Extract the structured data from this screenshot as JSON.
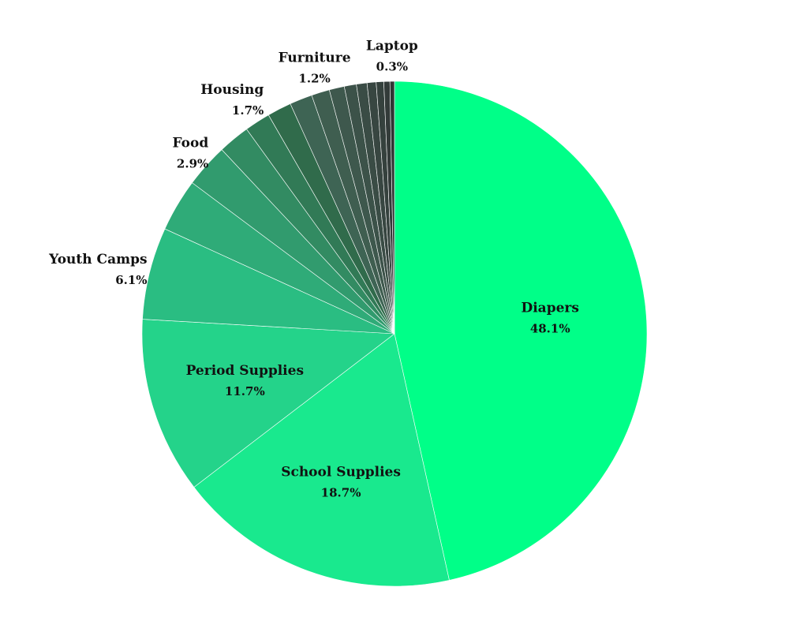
{
  "chart_data": {
    "type": "pie",
    "title": "",
    "start_angle_deg": 0,
    "direction": "clockwise",
    "slices": [
      {
        "label": "Diapers",
        "value": 48.1,
        "pct_label": "48.1%",
        "color": "#00FF88"
      },
      {
        "label": "School Supplies",
        "value": 18.7,
        "pct_label": "18.7%",
        "color": "#19E98E"
      },
      {
        "label": "Period Supplies",
        "value": 11.7,
        "pct_label": "11.7%",
        "color": "#24D38A"
      },
      {
        "label": "Youth Camps",
        "value": 6.1,
        "pct_label": "6.1%",
        "color": "#2ABD82"
      },
      {
        "label": "",
        "value": 3.5,
        "pct_label": "",
        "color": "#2FAB78"
      },
      {
        "label": "Food",
        "value": 2.9,
        "pct_label": "2.9%",
        "color": "#319B6E"
      },
      {
        "label": "",
        "value": 2.1,
        "pct_label": "",
        "color": "#328B62"
      },
      {
        "label": "Housing",
        "value": 1.7,
        "pct_label": "1.7%",
        "color": "#317A56"
      },
      {
        "label": "",
        "value": 1.6,
        "pct_label": "",
        "color": "#306B4B"
      },
      {
        "label": "",
        "value": 1.5,
        "pct_label": "",
        "color": "#3E6454"
      },
      {
        "label": "Furniture",
        "value": 1.2,
        "pct_label": "1.2%",
        "color": "#3F5E50"
      },
      {
        "label": "",
        "value": 1.0,
        "pct_label": "",
        "color": "#3E584D"
      },
      {
        "label": "",
        "value": 0.8,
        "pct_label": "",
        "color": "#3C5249"
      },
      {
        "label": "",
        "value": 0.7,
        "pct_label": "",
        "color": "#3A4C45"
      },
      {
        "label": "",
        "value": 0.6,
        "pct_label": "",
        "color": "#384641"
      },
      {
        "label": "",
        "value": 0.5,
        "pct_label": "",
        "color": "#35413D"
      },
      {
        "label": "",
        "value": 0.4,
        "pct_label": "",
        "color": "#333B39"
      },
      {
        "label": "Laptop",
        "value": 0.3,
        "pct_label": "0.3%",
        "color": "#2F3634"
      }
    ]
  }
}
